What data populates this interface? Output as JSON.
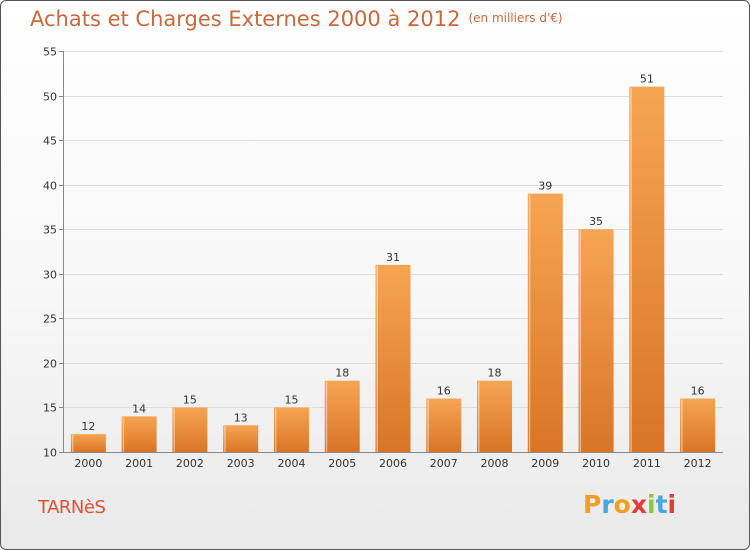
{
  "header": {
    "title": "Achats et Charges Externes 2000 à 2012",
    "unit": "(en milliers d'€)"
  },
  "footer": {
    "place": "TARNèS",
    "logo_text": "Proxiti"
  },
  "colors": {
    "bar_light": "#f6a553",
    "bar_dark": "#d97525",
    "title": "#c8683d",
    "place": "#e0503a",
    "logo": [
      "#f0a020",
      "#4aa6e0",
      "#f0a020",
      "#e03c3c",
      "#8cc63f",
      "#4aa6e0",
      "#e03c3c"
    ]
  },
  "chart_data": {
    "type": "bar",
    "title": "Achats et Charges Externes 2000 à 2012",
    "subtitle": "(en milliers d'€)",
    "categories": [
      "2000",
      "2001",
      "2002",
      "2003",
      "2004",
      "2005",
      "2006",
      "2007",
      "2008",
      "2009",
      "2010",
      "2011",
      "2012"
    ],
    "values": [
      12,
      14,
      15,
      13,
      15,
      18,
      31,
      16,
      18,
      39,
      35,
      51,
      16
    ],
    "ylim": [
      10,
      55
    ],
    "yticks": [
      10,
      15,
      20,
      25,
      30,
      35,
      40,
      45,
      50,
      55
    ],
    "grid": true,
    "data_labels": true
  }
}
